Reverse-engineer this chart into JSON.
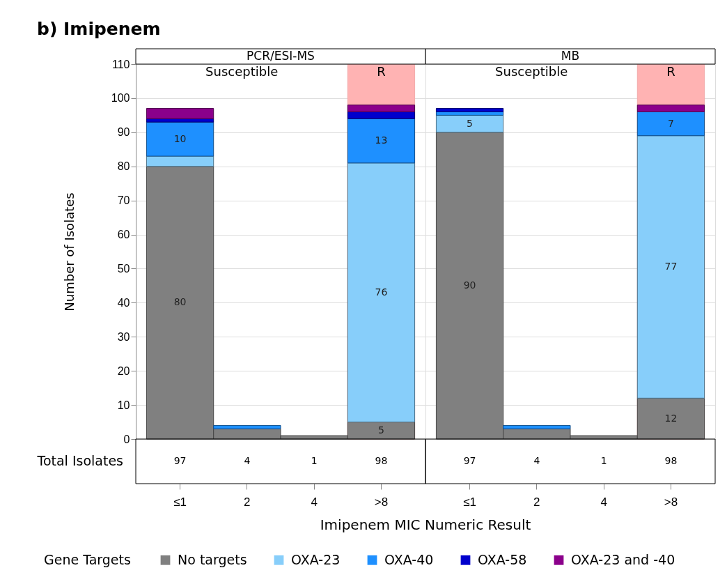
{
  "chart_data": [
    {
      "type": "bar",
      "title": "b) Imipenem",
      "subtitle": "PCR/ESI-MS",
      "xlabel": "Imipenem MIC Numeric Result",
      "ylabel": "Number of Isolates",
      "legend_title": "Gene Targets",
      "categories": [
        "≤1",
        "2",
        "4",
        ">8"
      ],
      "stacked": true,
      "series": [
        {
          "name": "No targets",
          "color": "#808080",
          "values": [
            80,
            3,
            1,
            5
          ],
          "value_labels": [
            "80",
            null,
            null,
            "5"
          ]
        },
        {
          "name": "OXA-23",
          "color": "#87cefa",
          "values": [
            3,
            0,
            0,
            76
          ],
          "value_labels": [
            null,
            null,
            null,
            "76"
          ]
        },
        {
          "name": "OXA-40",
          "color": "#1e90ff",
          "values": [
            10,
            1,
            0,
            13
          ],
          "value_labels": [
            "10",
            null,
            null,
            "13"
          ]
        },
        {
          "name": "OXA-58",
          "color": "#0000cd",
          "values": [
            1,
            0,
            0,
            2
          ]
        },
        {
          "name": "OXA-23 and -40",
          "color": "#8b008b",
          "values": [
            3,
            0,
            0,
            2
          ]
        }
      ],
      "totals": [
        "97",
        "4",
        "1",
        "98"
      ],
      "annotations": [
        "Susceptible",
        "Total Isolates"
      ],
      "bands": [
        {
          "axis": "x",
          "from": ">8",
          "to": ">8",
          "label": "R",
          "color": "#ffb3b3"
        }
      ],
      "ylim": [
        0,
        110
      ],
      "yticks": [
        0,
        10,
        20,
        30,
        40,
        50,
        60,
        70,
        80,
        90,
        100,
        110
      ],
      "grid": "y",
      "legend": "bottom"
    },
    {
      "type": "bar",
      "subtitle": "MB",
      "categories": [
        "≤1",
        "2",
        "4",
        ">8"
      ],
      "stacked": true,
      "series": [
        {
          "name": "No targets",
          "color": "#808080",
          "values": [
            90,
            3,
            1,
            12
          ],
          "value_labels": [
            "90",
            null,
            null,
            "12"
          ]
        },
        {
          "name": "OXA-23",
          "color": "#87cefa",
          "values": [
            5,
            0,
            0,
            77
          ],
          "value_labels": [
            "5",
            null,
            null,
            "77"
          ]
        },
        {
          "name": "OXA-40",
          "color": "#1e90ff",
          "values": [
            1,
            1,
            0,
            7
          ],
          "value_labels": [
            null,
            null,
            null,
            "7"
          ]
        },
        {
          "name": "OXA-58",
          "color": "#0000cd",
          "values": [
            1,
            0,
            0,
            0
          ]
        },
        {
          "name": "OXA-23 and -40",
          "color": "#8b008b",
          "values": [
            0,
            0,
            0,
            2
          ]
        }
      ],
      "totals": [
        "97",
        "4",
        "1",
        "98"
      ],
      "annotations": [
        "Susceptible"
      ],
      "bands": [
        {
          "axis": "x",
          "from": ">8",
          "to": ">8",
          "label": "R",
          "color": "#ffb3b3"
        }
      ],
      "ylim": [
        0,
        110
      ],
      "yticks": [
        0,
        10,
        20,
        30,
        40,
        50,
        60,
        70,
        80,
        90,
        100,
        110
      ],
      "grid": "y",
      "tick_labels": "x"
    }
  ]
}
